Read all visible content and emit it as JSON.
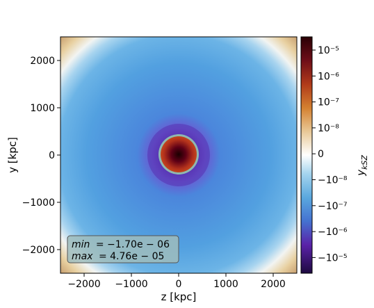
{
  "chart_data": {
    "type": "heatmap",
    "title": "",
    "xlabel": "z [kpc]",
    "ylabel": "y [kpc]",
    "xlim": [
      -2500,
      2500
    ],
    "ylim": [
      -2500,
      2500
    ],
    "xticks": [
      -2000,
      -1000,
      0,
      1000,
      2000
    ],
    "xtick_labels": [
      "−2000",
      "−1000",
      "0",
      "1000",
      "2000"
    ],
    "yticks": [
      -2000,
      -1000,
      0,
      1000,
      2000
    ],
    "ytick_labels": [
      "−2000",
      "−1000",
      "0",
      "1000",
      "2000"
    ],
    "grid": false,
    "colorbar": {
      "label_base": "y",
      "label_sub": "kSZ",
      "scale": "symlog",
      "tick_labels": [
        "10⁻⁵",
        "10⁻⁶",
        "10⁻⁷",
        "10⁻⁸",
        "0",
        "−10⁻⁸",
        "−10⁻⁷",
        "−10⁻⁶",
        "−10⁻⁵"
      ]
    },
    "annotation": {
      "min_name": "min",
      "min_value": "= −1.70e − 06",
      "max_name": "max",
      "max_value": "= 4.76e − 05"
    }
  }
}
